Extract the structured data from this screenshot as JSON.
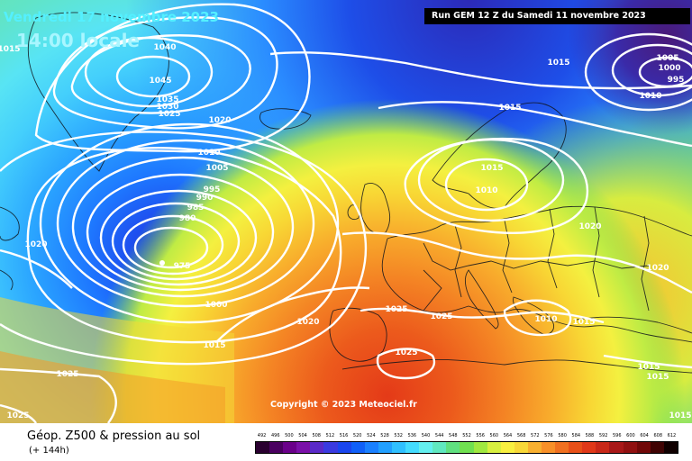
{
  "header": {
    "date": "Vendredi 17 novembre 2023",
    "time": "14:00 locale",
    "run": "Run GEM 12 Z du Samedi 11 novembre 2023"
  },
  "map": {
    "copyright": "Copyright © 2023 Meteociel.fr",
    "isobar_labels": [
      "1015",
      "1015",
      "1040",
      "1045",
      "1035",
      "1030",
      "1025",
      "1020",
      "1010",
      "1005",
      "995",
      "990",
      "985",
      "980",
      "975",
      "1000",
      "1020",
      "1015",
      "1025",
      "1025",
      "1020",
      "1015",
      "1010",
      "1015",
      "1020",
      "1020",
      "1025",
      "1025",
      "1025",
      "1010",
      "1015",
      "1015",
      "1015",
      "1015",
      "1005",
      "1000",
      "995",
      "1010"
    ],
    "colors": {
      "low_center": "#1c2adb",
      "high_center": "#e8321b",
      "isobar": "#ffffff"
    }
  },
  "legend": {
    "title": "Géop. Z500 & pression au sol",
    "subtitle": "(+ 144h)",
    "scale_values": [
      "492",
      "496",
      "500",
      "504",
      "508",
      "512",
      "516",
      "520",
      "524",
      "528",
      "532",
      "536",
      "540",
      "544",
      "548",
      "552",
      "556",
      "560",
      "564",
      "568",
      "572",
      "576",
      "580",
      "584",
      "588",
      "592",
      "596",
      "600",
      "604",
      "608",
      "612"
    ],
    "scale_colors": [
      "#2a0030",
      "#4a0060",
      "#6a008a",
      "#7a10a8",
      "#5a2ac8",
      "#3a3ae0",
      "#1a46ee",
      "#1060f8",
      "#1a80ff",
      "#22a0ff",
      "#30c0ff",
      "#44dcff",
      "#64f0f0",
      "#60e8c0",
      "#60e080",
      "#70e050",
      "#a0e840",
      "#d8f040",
      "#f8f040",
      "#f8d838",
      "#f8b030",
      "#f89028",
      "#f07020",
      "#e85018",
      "#e03818",
      "#c82818",
      "#a81818",
      "#901010",
      "#700808",
      "#400404",
      "#100000"
    ]
  }
}
